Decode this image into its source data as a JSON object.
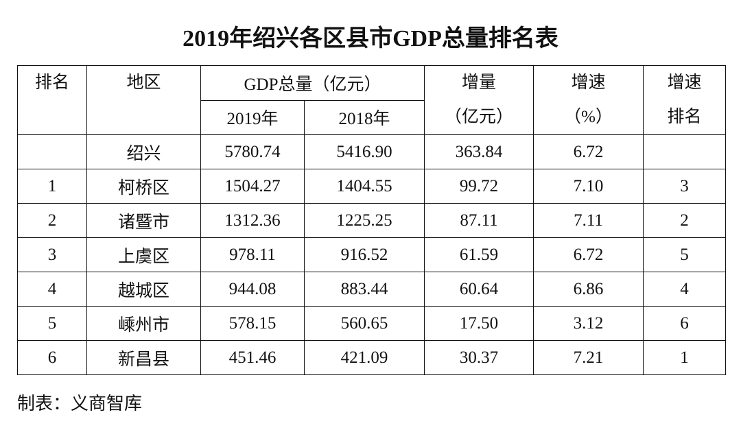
{
  "title": "2019年绍兴各区县市GDP总量排名表",
  "table": {
    "columns": [
      {
        "lines": [
          "排名"
        ]
      },
      {
        "lines": [
          "地区"
        ]
      },
      {
        "group": "GDP总量（亿元）",
        "sub": [
          "2019年",
          "2018年"
        ]
      },
      {
        "lines": [
          "增量",
          "（亿元）"
        ]
      },
      {
        "lines": [
          "增速",
          "（%）"
        ]
      },
      {
        "lines": [
          "增速",
          "排名"
        ]
      }
    ],
    "rows": [
      [
        null,
        "绍兴",
        "5780.74",
        "5416.90",
        "363.84",
        "6.72",
        null
      ],
      [
        "1",
        "柯桥区",
        "1504.27",
        "1404.55",
        "99.72",
        "7.10",
        "3"
      ],
      [
        "2",
        "诸暨市",
        "1312.36",
        "1225.25",
        "87.11",
        "7.11",
        "2"
      ],
      [
        "3",
        "上虞区",
        "978.11",
        "916.52",
        "61.59",
        "6.72",
        "5"
      ],
      [
        "4",
        "越城区",
        "944.08",
        "883.44",
        "60.64",
        "6.86",
        "4"
      ],
      [
        "5",
        "嵊州市",
        "578.15",
        "560.65",
        "17.50",
        "3.12",
        "6"
      ],
      [
        "6",
        "新昌县",
        "451.46",
        "421.09",
        "30.37",
        "7.21",
        "1"
      ]
    ]
  },
  "footer": "制表：义商智库"
}
